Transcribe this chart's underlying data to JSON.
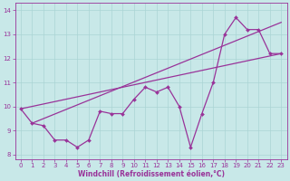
{
  "xlabel": "Windchill (Refroidissement éolien,°C)",
  "x_data": [
    0,
    1,
    2,
    3,
    4,
    5,
    6,
    7,
    8,
    9,
    10,
    11,
    12,
    13,
    14,
    15,
    16,
    17,
    18,
    19,
    20,
    21,
    22,
    23
  ],
  "y_data": [
    9.9,
    9.3,
    9.2,
    8.6,
    8.6,
    8.3,
    8.6,
    9.8,
    9.7,
    9.7,
    10.3,
    10.8,
    10.6,
    10.8,
    10.0,
    8.3,
    9.7,
    11.0,
    13.0,
    13.7,
    13.2,
    13.2,
    12.2,
    12.2
  ],
  "trend1_x": [
    0,
    23
  ],
  "trend1_y": [
    9.9,
    12.2
  ],
  "trend2_x": [
    1,
    23
  ],
  "trend2_y": [
    9.3,
    13.5
  ],
  "line_color": "#993399",
  "bg_color": "#c8e8e8",
  "ylim": [
    7.8,
    14.3
  ],
  "xlim": [
    -0.5,
    23.5
  ],
  "yticks": [
    8,
    9,
    10,
    11,
    12,
    13,
    14
  ],
  "xticks": [
    0,
    1,
    2,
    3,
    4,
    5,
    6,
    7,
    8,
    9,
    10,
    11,
    12,
    13,
    14,
    15,
    16,
    17,
    18,
    19,
    20,
    21,
    22,
    23
  ],
  "grid_color": "#aad4d4",
  "tick_fontsize": 5,
  "xlabel_fontsize": 5.5
}
